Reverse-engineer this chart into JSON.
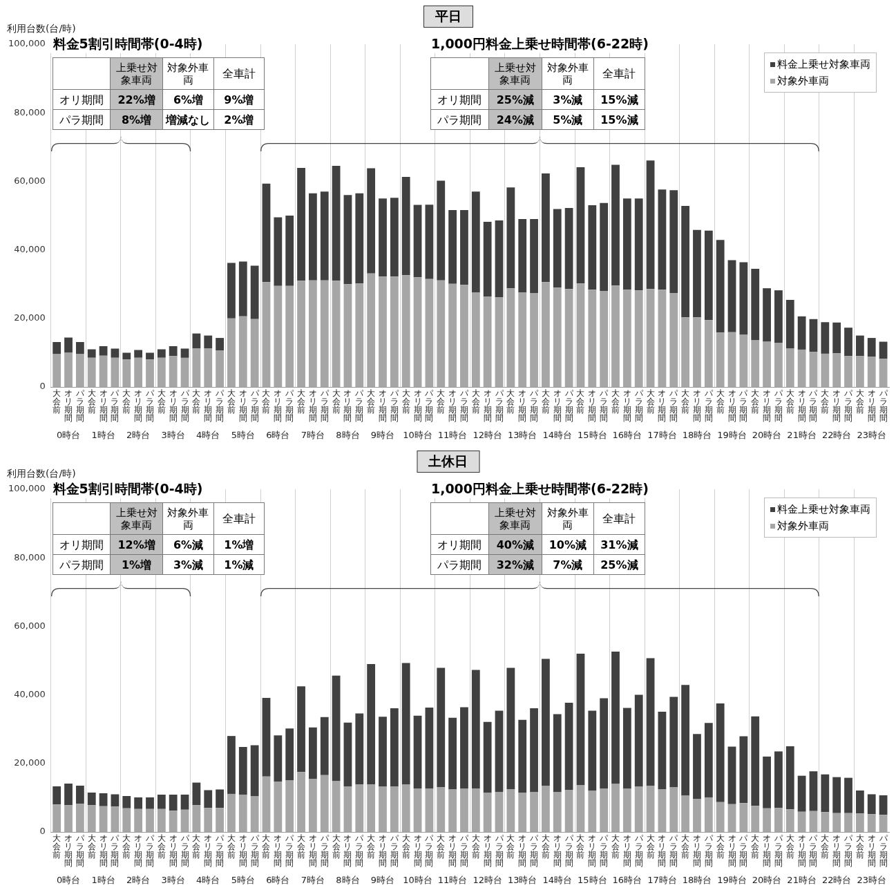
{
  "chart_data": [
    {
      "type": "bar",
      "title": "平日",
      "ylabel": "利用台数(台/時)",
      "stacked": true,
      "grid": "x",
      "legend": "top right",
      "ylim": [
        0,
        100000
      ],
      "yticks": [
        0,
        {
          "value": 20000,
          "label": "20,000"
        },
        {
          "value": 40000,
          "label": "40,000"
        },
        {
          "value": 60000,
          "label": "60,000"
        },
        {
          "value": 80000,
          "label": "80,000"
        },
        {
          "value": 100000,
          "label": "100,000"
        }
      ],
      "categories": [
        "大会前",
        "オリ期間",
        "パラ期間",
        "大会前",
        "オリ期間",
        "パラ期間",
        "大会前",
        "オリ期間",
        "パラ期間",
        "大会前",
        "オリ期間",
        "パラ期間",
        "大会前",
        "オリ期間",
        "パラ期間",
        "大会前",
        "オリ期間",
        "パラ期間",
        "大会前",
        "オリ期間",
        "パラ期間",
        "大会前",
        "オリ期間",
        "パラ期間",
        "大会前",
        "オリ期間",
        "パラ期間",
        "大会前",
        "オリ期間",
        "パラ期間",
        "大会前",
        "オリ期間",
        "パラ期間",
        "大会前",
        "オリ期間",
        "パラ期間",
        "大会前",
        "オリ期間",
        "パラ期間",
        "大会前",
        "オリ期間",
        "パラ期間",
        "大会前",
        "オリ期間",
        "パラ期間",
        "大会前",
        "オリ期間",
        "パラ期間",
        "大会前",
        "オリ期間",
        "パラ期間",
        "大会前",
        "オリ期間",
        "パラ期間",
        "大会前",
        "オリ期間",
        "パラ期間",
        "大会前",
        "オリ期間",
        "パラ期間",
        "大会前",
        "オリ期間",
        "パラ期間",
        "大会前",
        "オリ期間",
        "パラ期間",
        "大会前",
        "オリ期間",
        "パラ期間",
        "大会前",
        "オリ期間",
        "パラ期間"
      ],
      "series": [
        {
          "name": "対象外車両",
          "color": "#a6a6a6",
          "values": [
            9600,
            10000,
            9600,
            8500,
            9100,
            8500,
            8000,
            8500,
            8000,
            8500,
            9000,
            8500,
            11200,
            11200,
            10600,
            20000,
            20600,
            19800,
            30600,
            29500,
            29500,
            31000,
            31100,
            31100,
            31000,
            30000,
            30200,
            33100,
            32200,
            32200,
            32600,
            32000,
            31500,
            31100,
            30100,
            29800,
            27500,
            26400,
            26200,
            28800,
            27600,
            27300,
            30600,
            29000,
            28600,
            30200,
            28400,
            28000,
            29600,
            28400,
            28200,
            28600,
            28400,
            27400,
            20300,
            20300,
            19500,
            15900,
            16000,
            15200,
            13600,
            13200,
            12900,
            11200,
            10900,
            10200,
            9700,
            9800,
            9000,
            9000,
            8800,
            8200
          ]
        },
        {
          "name": "料金上乗せ対象車両",
          "color": "#404040",
          "values": [
            3500,
            4400,
            3500,
            2500,
            2800,
            2700,
            2000,
            2300,
            2000,
            2500,
            2900,
            2700,
            4400,
            3800,
            3700,
            16200,
            16000,
            15600,
            28700,
            20000,
            20500,
            32900,
            25400,
            25900,
            33500,
            26000,
            26300,
            30700,
            22800,
            23000,
            28700,
            21100,
            21700,
            29100,
            21500,
            21800,
            29500,
            21800,
            22400,
            29400,
            21400,
            21700,
            31700,
            22900,
            23600,
            33900,
            24600,
            25700,
            35200,
            26600,
            26800,
            37500,
            29200,
            30000,
            32500,
            25500,
            26100,
            27000,
            21000,
            21200,
            20900,
            15600,
            15300,
            14200,
            9700,
            9600,
            9200,
            9000,
            8300,
            6000,
            5500,
            5000
          ]
        }
      ],
      "annotations": [
        "料金5割引時間帯(0-4時)",
        "1,000円料金上乗せ時間帯(6-22時)",
        "上乗せ対象車両",
        "対象外車両",
        "全車計",
        "オリ期間",
        "22%増",
        "6%増",
        "9%増",
        "パラ期間",
        "8%増",
        "増減なし",
        "2%増",
        "上乗せ対象車両",
        "対象外車両",
        "全車計",
        "オリ期間",
        "25%減",
        "3%減",
        "15%減",
        "パラ期間",
        "24%減",
        "5%減",
        "15%減",
        "0時台",
        "1時台",
        "2時台",
        "3時台",
        "4時台",
        "5時台",
        "6時台",
        "7時台",
        "8時台",
        "9時台",
        "10時台",
        "11時台",
        "12時台",
        "13時台",
        "14時台",
        "15時台",
        "16時台",
        "17時台",
        "18時台",
        "19時台",
        "20時台",
        "21時台",
        "22時台",
        "23時台"
      ]
    },
    {
      "type": "bar",
      "title": "土休日",
      "ylabel": "利用台数(台/時)",
      "stacked": true,
      "grid": "x",
      "legend": "top right",
      "ylim": [
        0,
        100000
      ],
      "yticks": [
        0,
        {
          "value": 20000,
          "label": "20,000"
        },
        {
          "value": 40000,
          "label": "40,000"
        },
        {
          "value": 60000,
          "label": "60,000"
        },
        {
          "value": 80000,
          "label": "80,000"
        },
        {
          "value": 100000,
          "label": "100,000"
        }
      ],
      "categories": [
        "大会前",
        "オリ期間",
        "パラ期間",
        "大会前",
        "オリ期間",
        "パラ期間",
        "大会前",
        "オリ期間",
        "パラ期間",
        "大会前",
        "オリ期間",
        "パラ期間",
        "大会前",
        "オリ期間",
        "パラ期間",
        "大会前",
        "オリ期間",
        "パラ期間",
        "大会前",
        "オリ期間",
        "パラ期間",
        "大会前",
        "オリ期間",
        "パラ期間",
        "大会前",
        "オリ期間",
        "パラ期間",
        "大会前",
        "オリ期間",
        "パラ期間",
        "大会前",
        "オリ期間",
        "パラ期間",
        "大会前",
        "オリ期間",
        "パラ期間",
        "大会前",
        "オリ期間",
        "パラ期間",
        "大会前",
        "オリ期間",
        "パラ期間",
        "大会前",
        "オリ期間",
        "パラ期間",
        "大会前",
        "オリ期間",
        "パラ期間",
        "大会前",
        "オリ期間",
        "パラ期間",
        "大会前",
        "オリ期間",
        "パラ期間",
        "大会前",
        "オリ期間",
        "パラ期間",
        "大会前",
        "オリ期間",
        "パラ期間",
        "大会前",
        "オリ期間",
        "パラ期間",
        "大会前",
        "オリ期間",
        "パラ期間",
        "大会前",
        "オリ期間",
        "パラ期間",
        "大会前",
        "オリ期間",
        "パラ期間"
      ],
      "series": [
        {
          "name": "対象外車両",
          "color": "#a6a6a6",
          "values": [
            8000,
            7800,
            8200,
            7800,
            7500,
            7400,
            6900,
            6700,
            6700,
            6700,
            6200,
            6500,
            7800,
            7000,
            7000,
            11100,
            10900,
            10400,
            16200,
            14700,
            15000,
            17500,
            15500,
            16600,
            14800,
            13300,
            13900,
            13900,
            13200,
            13300,
            13800,
            12700,
            12700,
            13100,
            12400,
            12600,
            12700,
            11400,
            11700,
            12500,
            11400,
            11700,
            13400,
            11600,
            12300,
            13600,
            12000,
            12600,
            14000,
            12600,
            13200,
            13500,
            12400,
            13000,
            10600,
            9600,
            10100,
            8700,
            8100,
            8400,
            7600,
            6900,
            7000,
            6600,
            5900,
            6100,
            5800,
            5500,
            5500,
            5400,
            5200,
            5000
          ]
        },
        {
          "name": "料金上乗せ対象車両",
          "color": "#404040",
          "values": [
            5300,
            6300,
            5300,
            3700,
            3800,
            3600,
            3600,
            3400,
            3400,
            4200,
            4700,
            4400,
            6600,
            5200,
            5400,
            16900,
            13900,
            14900,
            22900,
            13500,
            15200,
            25000,
            15000,
            16900,
            30800,
            18600,
            20700,
            35100,
            20400,
            22800,
            35500,
            21200,
            23600,
            34800,
            20900,
            23800,
            34600,
            20700,
            23700,
            35400,
            21300,
            24400,
            37100,
            22800,
            25400,
            38400,
            23400,
            26400,
            38600,
            23600,
            26800,
            37200,
            22700,
            26400,
            32300,
            19000,
            21700,
            28800,
            16800,
            19500,
            26100,
            15100,
            16500,
            18400,
            10500,
            11600,
            11000,
            10500,
            10300,
            6700,
            5800,
            5700
          ]
        }
      ],
      "annotations": [
        "料金5割引時間帯(0-4時)",
        "1,000円料金上乗せ時間帯(6-22時)",
        "上乗せ対象車両",
        "対象外車両",
        "全車計",
        "オリ期間",
        "12%増",
        "6%減",
        "1%増",
        "パラ期間",
        "1%増",
        "3%減",
        "1%減",
        "上乗せ対象車両",
        "対象外車両",
        "全車計",
        "オリ期間",
        "40%減",
        "10%減",
        "31%減",
        "パラ期間",
        "32%減",
        "7%減",
        "25%減",
        "0時台",
        "1時台",
        "2時台",
        "3時台",
        "4時台",
        "5時台",
        "6時台",
        "7時台",
        "8時台",
        "9時台",
        "10時台",
        "11時台",
        "12時台",
        "13時台",
        "14時台",
        "15時台",
        "16時台",
        "17時台",
        "18時台",
        "19時台",
        "20時台",
        "21時台",
        "22時台",
        "23時台"
      ]
    }
  ]
}
